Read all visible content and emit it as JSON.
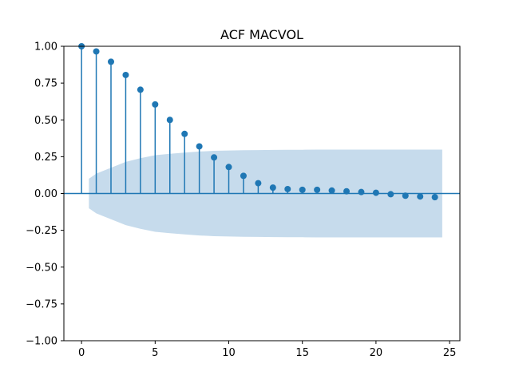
{
  "chart_data": {
    "type": "stem",
    "title": "ACF MACVOL",
    "xlabel": "",
    "ylabel": "",
    "xlim": [
      -1.2,
      25.7
    ],
    "ylim": [
      -1.0,
      1.0
    ],
    "xticks": [
      0,
      5,
      10,
      15,
      20,
      25
    ],
    "xtick_labels": [
      "0",
      "5",
      "10",
      "15",
      "20",
      "25"
    ],
    "yticks": [
      1.0,
      0.75,
      0.5,
      0.25,
      0.0,
      -0.25,
      -0.5,
      -0.75,
      -1.0
    ],
    "ytick_labels": [
      "1.00",
      "0.75",
      "0.50",
      "0.25",
      "0.00",
      "−0.25",
      "−0.50",
      "−0.75",
      "−1.00"
    ],
    "grid": false,
    "series": [
      {
        "lags": [
          0,
          1,
          2,
          3,
          4,
          5,
          6,
          7,
          8,
          9,
          10,
          11,
          12,
          13,
          14,
          15,
          16,
          17,
          18,
          19,
          20,
          21,
          22,
          23,
          24
        ],
        "values": [
          1.0,
          0.965,
          0.895,
          0.805,
          0.705,
          0.605,
          0.5,
          0.405,
          0.32,
          0.245,
          0.18,
          0.12,
          0.07,
          0.04,
          0.03,
          0.025,
          0.025,
          0.02,
          0.015,
          0.01,
          0.005,
          -0.005,
          -0.015,
          -0.02,
          -0.025
        ],
        "color": "#1f77b4"
      }
    ],
    "confidence_band": {
      "lags": [
        0.5,
        1,
        2,
        3,
        4,
        5,
        6,
        7,
        8,
        9,
        10,
        11,
        12,
        13,
        14,
        15,
        16,
        17,
        18,
        19,
        20,
        21,
        22,
        23,
        24,
        24.5
      ],
      "upper": [
        0.1,
        0.135,
        0.175,
        0.215,
        0.24,
        0.26,
        0.27,
        0.278,
        0.285,
        0.29,
        0.292,
        0.294,
        0.295,
        0.296,
        0.297,
        0.297,
        0.298,
        0.298,
        0.298,
        0.298,
        0.298,
        0.298,
        0.298,
        0.298,
        0.298,
        0.298
      ],
      "color": "#c6dbec"
    },
    "zero_line_color": "#1f77b4"
  }
}
